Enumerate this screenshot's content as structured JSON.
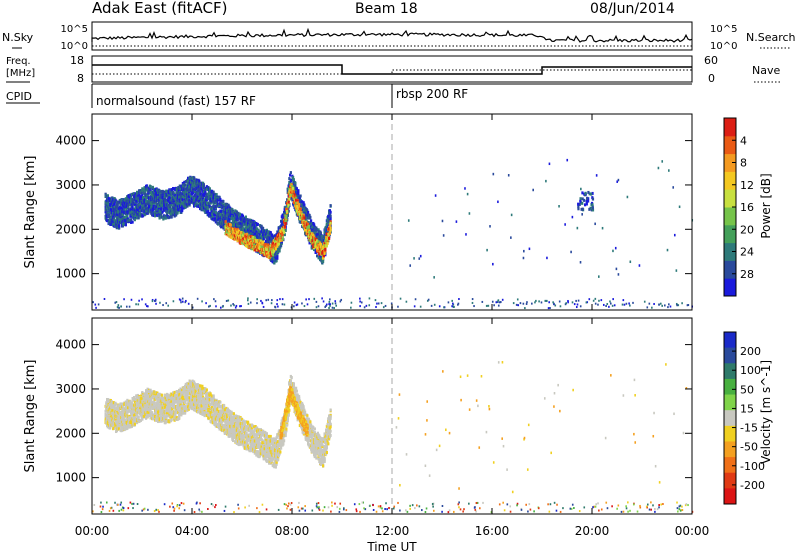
{
  "header": {
    "station": "Adak East (fitACF)",
    "beam": "Beam 18",
    "date": "08/Jun/2014"
  },
  "noise_panel": {
    "left_label": "N.Sky",
    "right_label": "N.Search",
    "left_ticks": [
      "10^5",
      "10^0"
    ],
    "right_ticks": [
      "10^5",
      "10^0"
    ]
  },
  "freq_panel": {
    "left_label_line1": "Freq.",
    "left_label_line2": "[MHz]",
    "right_label": "Nave",
    "left_ticks": [
      "18",
      "8"
    ],
    "right_ticks": [
      "60",
      "0"
    ]
  },
  "cpid_panel": {
    "label": "CPID",
    "programs": [
      {
        "name": "normalsound (fast) 157 RF",
        "start_hour": 0
      },
      {
        "name": "rbsp 200 RF",
        "start_hour": 12
      }
    ]
  },
  "time_axis": {
    "label": "Time UT",
    "ticks": [
      "00:00",
      "04:00",
      "08:00",
      "12:00",
      "16:00",
      "20:00",
      "00:00"
    ],
    "tick_hours": [
      0,
      4,
      8,
      12,
      16,
      20,
      24
    ]
  },
  "chart_data": [
    {
      "type": "heatmap",
      "name": "power",
      "xlabel": "Time UT",
      "ylabel": "Slant Range [km]",
      "xlim": [
        0,
        24
      ],
      "ylim": [
        180,
        4600
      ],
      "yticks": [
        "1000",
        "2000",
        "3000",
        "4000"
      ],
      "ytick_values": [
        1000,
        2000,
        3000,
        4000
      ],
      "colorbar": {
        "label": "Power [dB]",
        "range": [
          0,
          30
        ],
        "ticks": [
          "4",
          "8",
          "12",
          "16",
          "20",
          "24",
          "28"
        ],
        "colors": [
          "#1a1adc",
          "#2a4a9c",
          "#2e7a7a",
          "#44a05a",
          "#76c44a",
          "#c8e040",
          "#f4c820",
          "#f49a20",
          "#ea5a14",
          "#dc1e14"
        ]
      },
      "features": [
        {
          "kind": "band",
          "t_start": 0.5,
          "t_end": 9.6,
          "center_km": [
            [
              0.5,
              2450
            ],
            [
              1.0,
              2300
            ],
            [
              1.6,
              2450
            ],
            [
              2.2,
              2650
            ],
            [
              2.8,
              2500
            ],
            [
              3.4,
              2600
            ],
            [
              3.9,
              2850
            ],
            [
              4.4,
              2700
            ],
            [
              5.0,
              2400
            ],
            [
              5.6,
              2100
            ],
            [
              6.2,
              1900
            ],
            [
              6.8,
              1700
            ],
            [
              7.3,
              1500
            ],
            [
              7.7,
              2200
            ],
            [
              7.9,
              3000
            ],
            [
              8.3,
              2400
            ],
            [
              8.8,
              1800
            ],
            [
              9.2,
              1500
            ],
            [
              9.5,
              2200
            ]
          ],
          "width_km": 320,
          "level": "low"
        },
        {
          "kind": "band",
          "t_start": 5.3,
          "t_end": 9.6,
          "center_km": [
            [
              5.3,
              2000
            ],
            [
              6.0,
              1750
            ],
            [
              6.6,
              1600
            ],
            [
              7.1,
              1450
            ],
            [
              7.6,
              1900
            ],
            [
              7.9,
              2900
            ],
            [
              8.3,
              2300
            ],
            [
              8.8,
              1700
            ],
            [
              9.2,
              1450
            ],
            [
              9.5,
              2000
            ]
          ],
          "width_km": 140,
          "level": "high"
        },
        {
          "kind": "scatter",
          "t_start": 0,
          "t_end": 24,
          "km_range": [
            200,
            420
          ],
          "level": "low"
        },
        {
          "kind": "patch",
          "t_center": 19.7,
          "km_center": 2600,
          "level": "low"
        }
      ]
    },
    {
      "type": "heatmap",
      "name": "velocity",
      "xlabel": "Time UT",
      "ylabel": "Slant Range [km]",
      "xlim": [
        0,
        24
      ],
      "ylim": [
        180,
        4600
      ],
      "yticks": [
        "1000",
        "2000",
        "3000",
        "4000"
      ],
      "ytick_values": [
        1000,
        2000,
        3000,
        4000
      ],
      "colorbar": {
        "label": "Velocity [m s^-1]",
        "range": [
          -250,
          250
        ],
        "ticks": [
          "200",
          "100",
          "50",
          "15",
          "-15",
          "-50",
          "-100",
          "-200"
        ],
        "colors": [
          "#1a2ac8",
          "#2a4a9c",
          "#2e7a6a",
          "#48b040",
          "#80d44a",
          "#c8c8c0",
          "#f0d020",
          "#f4a020",
          "#f07018",
          "#e03a14",
          "#dc1414"
        ]
      },
      "features": [
        {
          "kind": "band",
          "t_start": 0.5,
          "t_end": 9.6,
          "center_km": [
            [
              0.5,
              2450
            ],
            [
              1.0,
              2300
            ],
            [
              1.6,
              2450
            ],
            [
              2.2,
              2650
            ],
            [
              2.8,
              2500
            ],
            [
              3.4,
              2600
            ],
            [
              3.9,
              2850
            ],
            [
              4.4,
              2700
            ],
            [
              5.0,
              2400
            ],
            [
              5.6,
              2100
            ],
            [
              6.2,
              1900
            ],
            [
              6.8,
              1700
            ],
            [
              7.3,
              1500
            ],
            [
              7.7,
              2200
            ],
            [
              7.9,
              3000
            ],
            [
              8.3,
              2400
            ],
            [
              8.8,
              1800
            ],
            [
              9.2,
              1500
            ],
            [
              9.5,
              2200
            ]
          ],
          "width_km": 320,
          "level": "gray"
        },
        {
          "kind": "band",
          "t_start": 7.5,
          "t_end": 8.6,
          "center_km": [
            [
              7.5,
              1900
            ],
            [
              7.9,
              2900
            ],
            [
              8.3,
              2300
            ],
            [
              8.6,
              2000
            ]
          ],
          "width_km": 140,
          "level": "orange"
        },
        {
          "kind": "scatter",
          "t_start": 0,
          "t_end": 24,
          "km_range": [
            200,
            420
          ],
          "level": "mixed"
        }
      ]
    }
  ]
}
